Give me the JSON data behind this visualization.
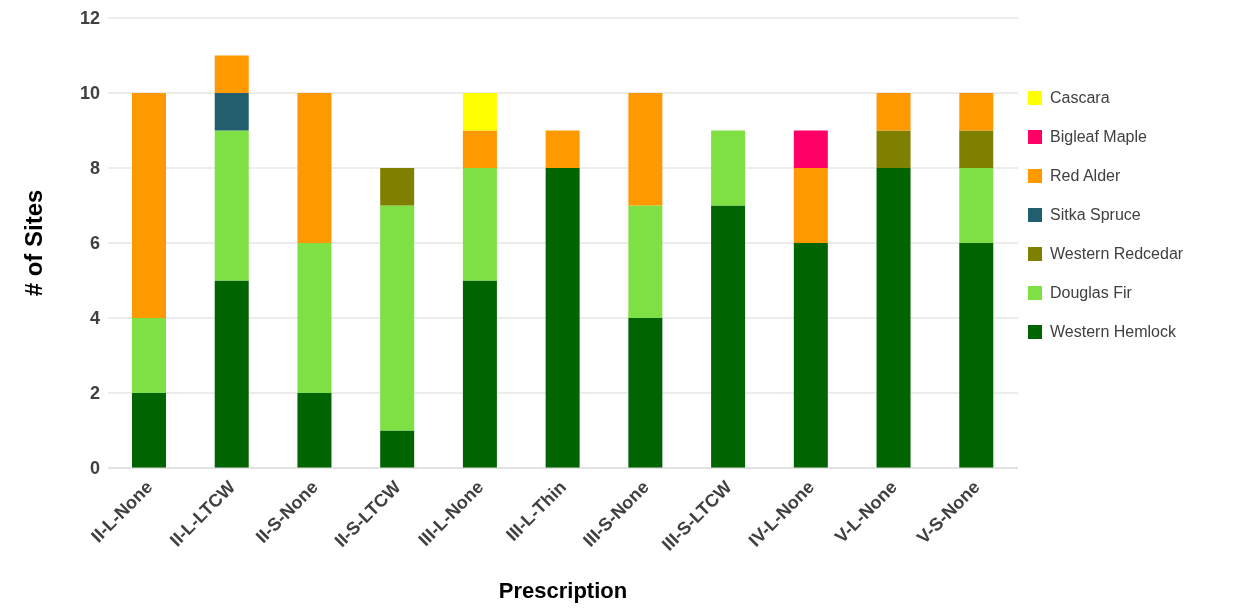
{
  "chart_data": {
    "type": "bar",
    "stacked": true,
    "xlabel": "Prescription",
    "ylabel": "# of Sites",
    "categories": [
      "II-L-None",
      "II-L-LTCW",
      "II-S-None",
      "II-S-LTCW",
      "III-L-None",
      "III-L-Thin",
      "III-S-None",
      "III-S-LTCW",
      "IV-L-None",
      "V-L-None",
      "V-S-None"
    ],
    "series": [
      {
        "name": "Western Hemlock",
        "color": "#006400",
        "values": [
          2,
          5,
          2,
          1,
          5,
          8,
          4,
          7,
          6,
          8,
          6
        ]
      },
      {
        "name": "Douglas Fir",
        "color": "#7ee043",
        "values": [
          2,
          4,
          4,
          6,
          3,
          0,
          3,
          2,
          0,
          0,
          2
        ]
      },
      {
        "name": "Western Redcedar",
        "color": "#808000",
        "values": [
          0,
          0,
          0,
          1,
          0,
          0,
          0,
          0,
          0,
          1,
          1
        ]
      },
      {
        "name": "Sitka Spruce",
        "color": "#215f6e",
        "values": [
          0,
          1,
          0,
          0,
          0,
          0,
          0,
          0,
          0,
          0,
          0
        ]
      },
      {
        "name": "Red Alder",
        "color": "#ff9900",
        "values": [
          6,
          1,
          4,
          0,
          1,
          1,
          3,
          0,
          2,
          1,
          1
        ]
      },
      {
        "name": "Bigleaf Maple",
        "color": "#ff0066",
        "values": [
          0,
          0,
          0,
          0,
          0,
          0,
          0,
          0,
          1,
          0,
          0
        ]
      },
      {
        "name": "Cascara",
        "color": "#ffff00",
        "values": [
          0,
          0,
          0,
          0,
          1,
          0,
          0,
          0,
          0,
          0,
          0
        ]
      }
    ],
    "ylim": [
      0,
      12
    ],
    "yticks": [
      0,
      2,
      4,
      6,
      8,
      10,
      12
    ],
    "grid": "y",
    "legend": "right"
  }
}
